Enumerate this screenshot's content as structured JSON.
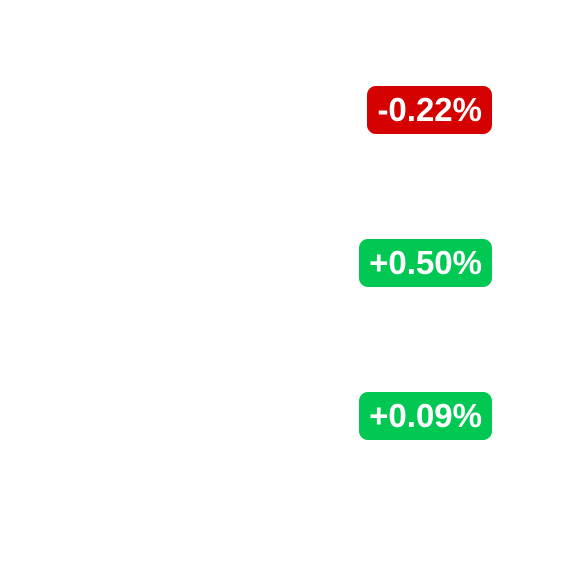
{
  "changes": [
    {
      "label": "-0.22%",
      "direction": "down",
      "color": "#d50000"
    },
    {
      "label": "+0.50%",
      "direction": "up",
      "color": "#00c853"
    },
    {
      "label": "+0.09%",
      "direction": "up",
      "color": "#00c853"
    }
  ]
}
